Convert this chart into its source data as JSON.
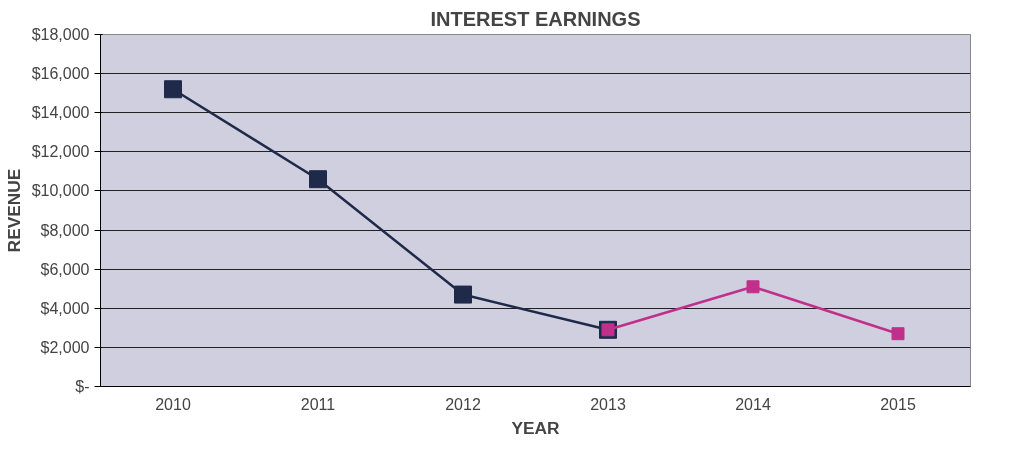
{
  "chart_data": {
    "type": "line",
    "title": "INTEREST EARNINGS",
    "xlabel": "YEAR",
    "ylabel": "REVENUE",
    "categories": [
      "2010",
      "2011",
      "2012",
      "2013",
      "2014",
      "2015"
    ],
    "series": [
      {
        "color": "#1f2a4a",
        "values": [
          15200,
          10600,
          4700,
          2900,
          null,
          null
        ]
      },
      {
        "color": "#c0308a",
        "values": [
          null,
          null,
          null,
          2900,
          5100,
          2700
        ]
      }
    ],
    "ylim": [
      0,
      18000
    ],
    "yticks": [
      {
        "value": 0,
        "label": "$-"
      },
      {
        "value": 2000,
        "label": "$2,000"
      },
      {
        "value": 4000,
        "label": "$4,000"
      },
      {
        "value": 6000,
        "label": "$6,000"
      },
      {
        "value": 8000,
        "label": "$8,000"
      },
      {
        "value": 10000,
        "label": "$10,000"
      },
      {
        "value": 12000,
        "label": "$12,000"
      },
      {
        "value": 14000,
        "label": "$14,000"
      },
      {
        "value": 16000,
        "label": "$16,000"
      },
      {
        "value": 18000,
        "label": "$18,000"
      }
    ],
    "grid": "y",
    "marker": "square",
    "line_style": "solid"
  }
}
